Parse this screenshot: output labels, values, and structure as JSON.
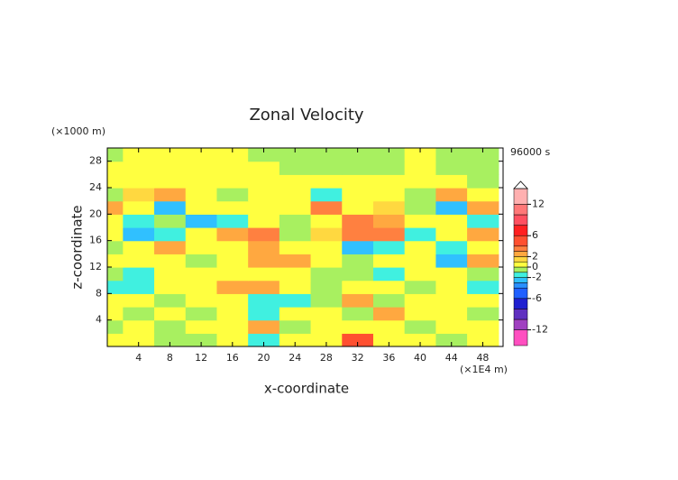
{
  "chart_data": {
    "type": "contour",
    "title": "Zonal Velocity",
    "x_label": "x-coordinate",
    "y_label": "z-coordinate",
    "x_unit": "(×1E4 m)",
    "y_unit": "(×1000 m)",
    "time_label": "96000 s",
    "xlim": [
      0,
      50.6
    ],
    "ylim": [
      0,
      30
    ],
    "xticks": [
      4,
      8,
      12,
      16,
      20,
      24,
      28,
      32,
      36,
      40,
      44,
      48
    ],
    "yticks": [
      4,
      8,
      12,
      16,
      20,
      24,
      28
    ],
    "x": [
      0,
      4,
      8,
      12,
      16,
      20,
      24,
      28,
      32,
      36,
      40,
      44,
      48
    ],
    "z": [
      1,
      3,
      5,
      7,
      9,
      11,
      13,
      15,
      17,
      19,
      21,
      23,
      25,
      27,
      29
    ],
    "values": [
      [
        0.5,
        0.5,
        -0.5,
        -0.5,
        0.5,
        -1.5,
        0.5,
        0.5,
        4,
        0.5,
        0.5,
        -0.5,
        0.5
      ],
      [
        -0.5,
        0.5,
        -0.5,
        0.5,
        0.5,
        2,
        -0.5,
        0.5,
        0.5,
        0.5,
        -0.5,
        0.5,
        0.5
      ],
      [
        0.5,
        -0.5,
        0.5,
        -0.5,
        0.5,
        -1.5,
        0.5,
        0.5,
        -0.5,
        2,
        0.5,
        0.5,
        -0.5
      ],
      [
        0.5,
        0.5,
        -0.5,
        0.5,
        0.5,
        -1.5,
        -1.5,
        -1,
        2,
        -0.5,
        0.5,
        0.5,
        0.5
      ],
      [
        -1.5,
        -1.5,
        0.5,
        0.5,
        2,
        2,
        0.5,
        -0.5,
        0.5,
        0.5,
        -0.5,
        0.5,
        -1.5
      ],
      [
        -0.5,
        -1.5,
        0.5,
        0.5,
        0.5,
        0.5,
        0.5,
        -0.5,
        -0.5,
        -1.5,
        0.5,
        0.5,
        -0.5
      ],
      [
        0.5,
        0.5,
        0.5,
        -0.5,
        0.5,
        2,
        2,
        0.5,
        -0.5,
        0.5,
        0.5,
        -2.5,
        2
      ],
      [
        -0.5,
        0.5,
        2,
        0.5,
        0.5,
        2,
        0.5,
        0.5,
        -3,
        -1.5,
        0.5,
        -1.5,
        0.5
      ],
      [
        0.5,
        -3,
        -1.5,
        0.5,
        2.5,
        3,
        -1,
        1.5,
        3.5,
        3.5,
        -1.5,
        0.5,
        2.5
      ],
      [
        0.5,
        -1.5,
        -0.5,
        -2.5,
        -1.5,
        0.5,
        -1,
        0.5,
        3,
        2.5,
        0.5,
        0.5,
        -1.5
      ],
      [
        2.5,
        0.5,
        -2.5,
        0.5,
        0.5,
        0.5,
        0.5,
        3.5,
        0.5,
        1.5,
        -0.5,
        -2.5,
        2
      ],
      [
        -0.5,
        1.5,
        2.5,
        0.5,
        -0.5,
        0.5,
        0.5,
        -2,
        0.5,
        0.5,
        -0.5,
        2,
        0.5
      ],
      [
        0.5,
        0.5,
        0.5,
        0.5,
        0.5,
        0.5,
        0.5,
        0.5,
        0.5,
        0.5,
        0.5,
        0.5,
        -0.5
      ],
      [
        0.5,
        0.5,
        0.5,
        0.5,
        0.5,
        0.5,
        -0.5,
        -0.5,
        -0.5,
        -0.5,
        0.5,
        -0.5,
        -0.5
      ],
      [
        -0.5,
        0.5,
        0.5,
        0.5,
        0.5,
        -0.5,
        -0.5,
        -0.5,
        -0.5,
        -0.5,
        0.5,
        -0.5,
        -0.5
      ]
    ],
    "levels": [
      -15,
      -12,
      -10,
      -8,
      -6,
      -4,
      -3,
      -2,
      -1,
      0,
      1,
      2,
      3,
      4,
      6,
      8,
      10,
      12,
      15
    ],
    "level_colors": [
      "#ff4fc0",
      "#a040c0",
      "#6030c0",
      "#2020d0",
      "#2060ff",
      "#2a90ff",
      "#30c0ff",
      "#40f0e0",
      "#a8f060",
      "#ffff40",
      "#ffd840",
      "#ffa840",
      "#ff8040",
      "#ff5030",
      "#ff2020",
      "#ff5060",
      "#ff7878",
      "#ffb0b0"
    ],
    "colorbar_ticks": [
      -12,
      -6,
      -2,
      0,
      2,
      6,
      12
    ]
  }
}
